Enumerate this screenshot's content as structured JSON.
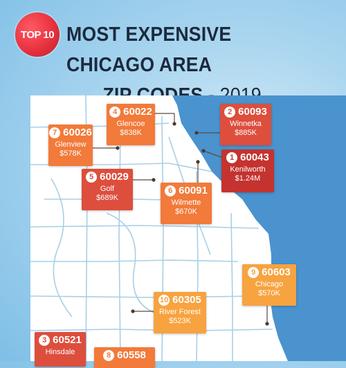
{
  "badge": {
    "text": "TOP 10"
  },
  "title": {
    "line1": "MOST EXPENSIVE CHICAGO AREA",
    "line2_main": "ZIP CODES",
    "line2_sep": " - ",
    "line2_year": "2019"
  },
  "colors": {
    "orange": "#f27a3a",
    "red": "#dd4e3d",
    "dark_red": "#c4332f",
    "light_orange": "#f7a340",
    "land": "#ffffff",
    "lake": "#4a93cf",
    "roads": "#a8cfe6"
  },
  "cards": [
    {
      "rank": "4",
      "zip": "60022",
      "name": "Glencoe",
      "price": "$838K"
    },
    {
      "rank": "2",
      "zip": "60093",
      "name": "Winnetka",
      "price": "$885K"
    },
    {
      "rank": "7",
      "zip": "60026",
      "name": "Glenview",
      "price": "$578K"
    },
    {
      "rank": "1",
      "zip": "60043",
      "name": "Kenilworth",
      "price": "$1.24M"
    },
    {
      "rank": "5",
      "zip": "60029",
      "name": "Golf",
      "price": "$689K"
    },
    {
      "rank": "6",
      "zip": "60091",
      "name": "Wilmette",
      "price": "$670K"
    },
    {
      "rank": "9",
      "zip": "60603",
      "name": "Chicago",
      "price": "$570K"
    },
    {
      "rank": "10",
      "zip": "60305",
      "name": "River Forest",
      "price": "$523K"
    },
    {
      "rank": "3",
      "zip": "60521",
      "name": "Hinsdale",
      "price": ""
    },
    {
      "rank": "8",
      "zip": "60558",
      "name": "",
      "price": ""
    }
  ]
}
